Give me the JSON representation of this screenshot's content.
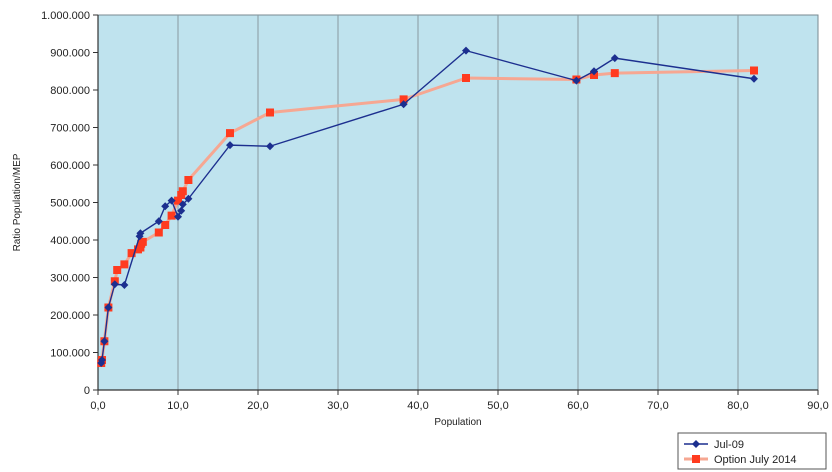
{
  "chart_data": {
    "type": "line",
    "title": "",
    "xlabel": "Population",
    "ylabel": "Ratio Population/MEP",
    "xlim": [
      0,
      90
    ],
    "ylim": [
      0,
      1000000
    ],
    "x_ticks": [
      0,
      10,
      20,
      30,
      40,
      50,
      60,
      70,
      80,
      90
    ],
    "x_tick_labels": [
      "0,0",
      "10,0",
      "20,0",
      "30,0",
      "40,0",
      "50,0",
      "60,0",
      "70,0",
      "80,0",
      "90,0"
    ],
    "y_ticks": [
      0,
      100000,
      200000,
      300000,
      400000,
      500000,
      600000,
      700000,
      800000,
      900000,
      1000000
    ],
    "y_tick_labels": [
      "0",
      "100.000",
      "200.000",
      "300.000",
      "400.000",
      "500.000",
      "600.000",
      "700.000",
      "800.000",
      "900.000",
      "1.000.000"
    ],
    "grid": {
      "x": true,
      "y": false
    },
    "plot_background": "#bfe3ee",
    "legend_position": "bottom-right",
    "series": [
      {
        "name": "Option July 2014",
        "color": "#ff3b1f",
        "line_color": "#f6a792",
        "marker": "square",
        "x": [
          0.4,
          0.5,
          0.8,
          1.3,
          2.1,
          2.4,
          3.3,
          4.2,
          5.0,
          5.3,
          5.4,
          5.6,
          7.6,
          8.4,
          9.2,
          10.0,
          10.4,
          10.6,
          11.3,
          16.5,
          21.5,
          38.2,
          46.0,
          59.8,
          62.0,
          64.6,
          82.0
        ],
        "y": [
          72000,
          80000,
          130000,
          220000,
          290000,
          320000,
          335000,
          365000,
          375000,
          380000,
          390000,
          395000,
          420000,
          440000,
          465000,
          505000,
          520000,
          530000,
          560000,
          685000,
          740000,
          775000,
          832000,
          828000,
          840000,
          845000,
          852000
        ]
      },
      {
        "name": "Jul-09",
        "color": "#1c2f8f",
        "line_color": "#1c2f8f",
        "marker": "diamond",
        "x": [
          0.4,
          0.5,
          0.8,
          1.3,
          2.1,
          3.3,
          5.2,
          5.3,
          7.6,
          8.4,
          9.2,
          10.0,
          10.4,
          10.6,
          11.3,
          16.5,
          21.5,
          38.2,
          46.0,
          59.8,
          62.0,
          64.6,
          82.0
        ],
        "y": [
          72000,
          80000,
          130000,
          220000,
          282000,
          280000,
          410000,
          418000,
          450000,
          490000,
          505000,
          462000,
          478000,
          495000,
          510000,
          653000,
          650000,
          762000,
          905000,
          825000,
          850000,
          885000,
          830000
        ]
      }
    ]
  }
}
